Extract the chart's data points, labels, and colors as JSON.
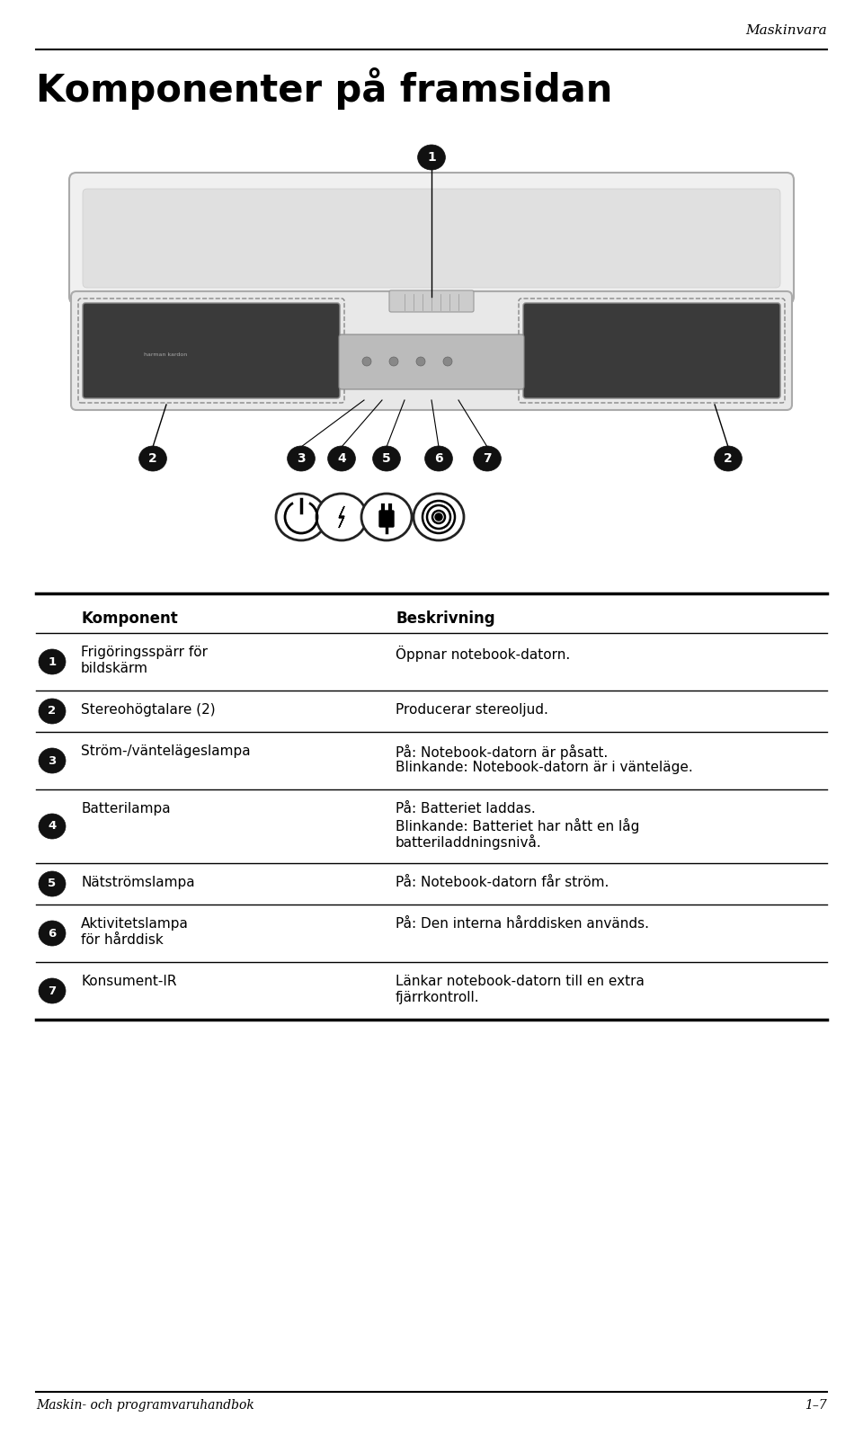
{
  "header_right": "Maskinvara",
  "title": "Komponenter på framsidan",
  "footer_left": "Maskin- och programvaruhandbok",
  "footer_right": "1–7",
  "table_header_col1": "Komponent",
  "table_header_col2": "Beskrivning",
  "rows": [
    {
      "number": "1",
      "col1_lines": [
        "Frigöringsspärr för",
        "bildskärm"
      ],
      "col2_lines": [
        "Öppnar notebook-datorn."
      ]
    },
    {
      "number": "2",
      "col1_lines": [
        "Stereohögtalare (2)"
      ],
      "col2_lines": [
        "Producerar stereoljud."
      ]
    },
    {
      "number": "3",
      "col1_lines": [
        "Ström-/väntelägeslampa"
      ],
      "col2_lines": [
        "På: Notebook-datorn är påsatt.",
        "Blinkande: Notebook-datorn är i vänteläge."
      ]
    },
    {
      "number": "4",
      "col1_lines": [
        "Batterilampa"
      ],
      "col2_lines": [
        "På: Batteriet laddas.",
        "Blinkande: Batteriet har nått en låg",
        "batteriladdningsnivå."
      ]
    },
    {
      "number": "5",
      "col1_lines": [
        "Nätströmslampa"
      ],
      "col2_lines": [
        "På: Notebook-datorn får ström."
      ]
    },
    {
      "number": "6",
      "col1_lines": [
        "Aktivitetslampa",
        "för hårddisk"
      ],
      "col2_lines": [
        "På: Den interna hårddisken används."
      ]
    },
    {
      "number": "7",
      "col1_lines": [
        "Konsument-IR"
      ],
      "col2_lines": [
        "Länkar notebook-datorn till en extra",
        "fjärrkontroll."
      ]
    }
  ],
  "bg_color": "#ffffff",
  "text_color": "#000000",
  "page_width": 9.6,
  "page_height": 15.96
}
